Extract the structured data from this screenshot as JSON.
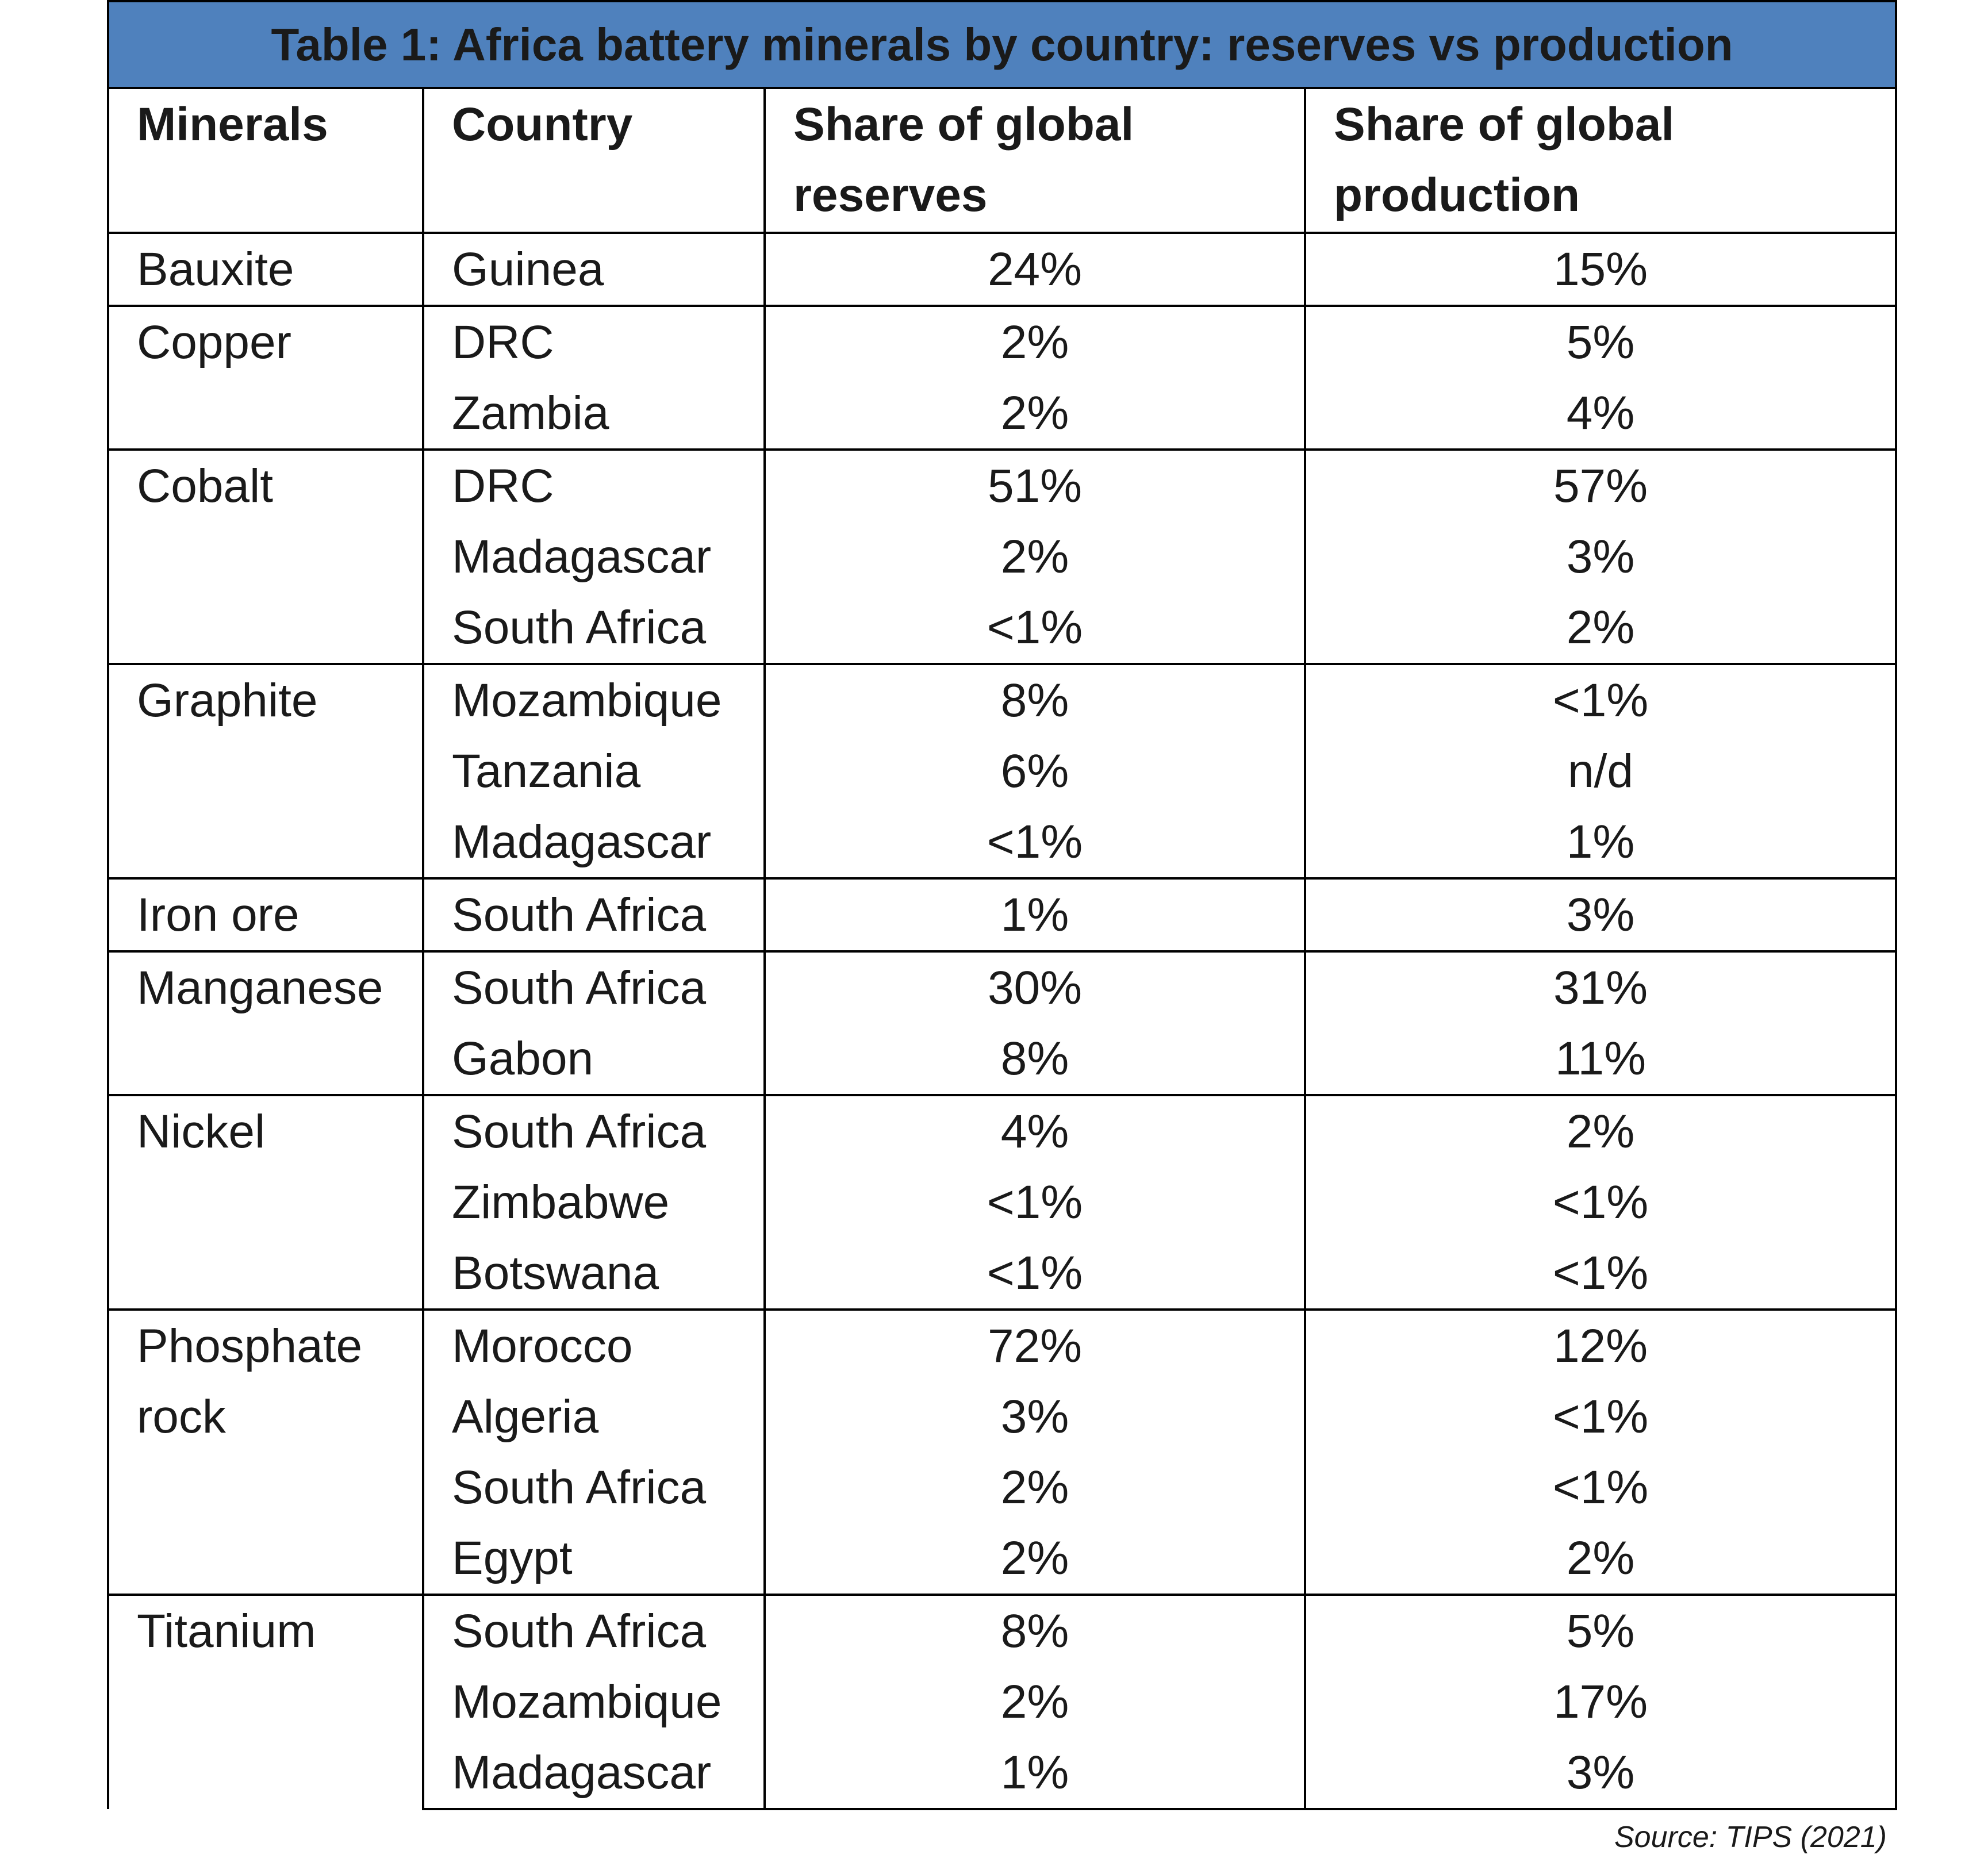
{
  "table": {
    "title": "Table 1: Africa battery minerals by country: reserves vs production",
    "header": [
      "Minerals",
      "Country",
      "Share of global reserves",
      "Share of global production"
    ],
    "groups": [
      {
        "mineral": "Bauxite",
        "rows": [
          [
            "Guinea",
            "24%",
            "15%"
          ]
        ]
      },
      {
        "mineral": "Copper",
        "rows": [
          [
            "DRC",
            "2%",
            "5%"
          ],
          [
            "Zambia",
            "2%",
            "4%"
          ]
        ]
      },
      {
        "mineral": "Cobalt",
        "rows": [
          [
            "DRC",
            "51%",
            "57%"
          ],
          [
            "Madagascar",
            "2%",
            "3%"
          ],
          [
            "South Africa",
            "<1%",
            "2%"
          ]
        ]
      },
      {
        "mineral": "Graphite",
        "rows": [
          [
            "Mozambique",
            "8%",
            "<1%"
          ],
          [
            "Tanzania",
            "6%",
            "n/d"
          ],
          [
            "Madagascar",
            "<1%",
            "1%"
          ]
        ]
      },
      {
        "mineral": "Iron ore",
        "rows": [
          [
            "South Africa",
            "1%",
            "3%"
          ]
        ]
      },
      {
        "mineral": "Manganese",
        "rows": [
          [
            "South Africa",
            "30%",
            "31%"
          ],
          [
            "Gabon",
            "8%",
            "11%"
          ]
        ]
      },
      {
        "mineral": "Nickel",
        "rows": [
          [
            "South Africa",
            "4%",
            "2%"
          ],
          [
            "Zimbabwe",
            "<1%",
            "<1%"
          ],
          [
            "Botswana",
            "<1%",
            "<1%"
          ]
        ]
      },
      {
        "mineral": "Phosphate rock",
        "rows": [
          [
            "Morocco",
            "72%",
            "12%"
          ],
          [
            "Algeria",
            "3%",
            "<1%"
          ],
          [
            "South Africa",
            "2%",
            "<1%"
          ],
          [
            "Egypt",
            "2%",
            "2%"
          ]
        ]
      },
      {
        "mineral": "Titanium",
        "rows": [
          [
            "South Africa",
            "8%",
            "5%"
          ],
          [
            "Mozambique",
            "2%",
            "17%"
          ],
          [
            "Madagascar",
            "1%",
            "3%"
          ]
        ]
      }
    ],
    "source": "Source: TIPS (2021)"
  }
}
